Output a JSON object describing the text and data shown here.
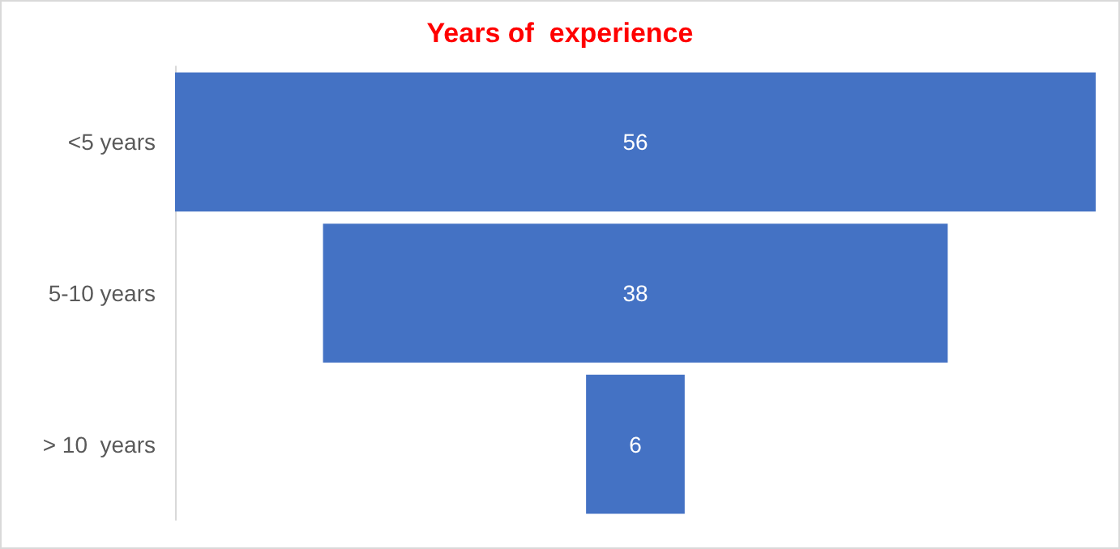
{
  "chart_data": {
    "type": "other",
    "title": "Years of  experience",
    "categories": [
      "<5 years",
      "5-10 years",
      "> 10  years"
    ],
    "values": [
      56,
      38,
      6
    ],
    "color": "#4472c4",
    "data_labels": true
  }
}
